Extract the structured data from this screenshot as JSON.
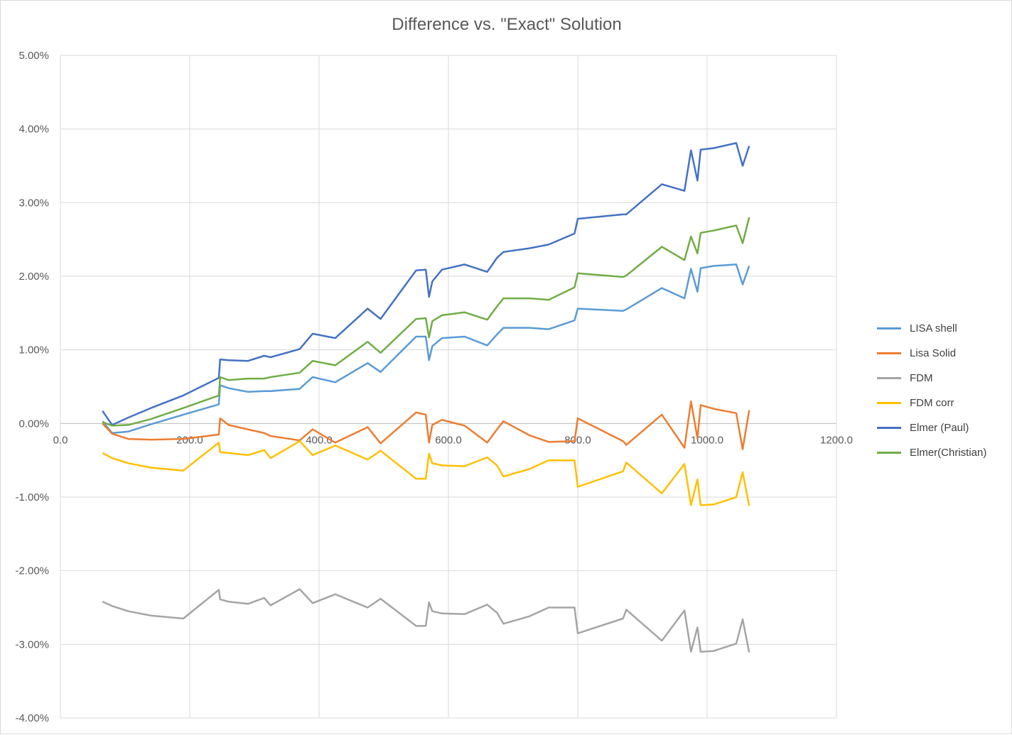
{
  "chart_data": {
    "type": "line",
    "title": "Difference vs. \"Exact\" Solution",
    "xlabel": "",
    "ylabel": "",
    "xlim": [
      0,
      1200
    ],
    "ylim": [
      -0.04,
      0.05
    ],
    "x_ticks": [
      0,
      200,
      400,
      600,
      800,
      1000,
      1200
    ],
    "x_tick_labels": [
      "0.0",
      "200.0",
      "400.0",
      "600.0",
      "800.0",
      "1000.0",
      "1200.0"
    ],
    "y_ticks": [
      0.05,
      0.04,
      0.03,
      0.02,
      0.01,
      0,
      -0.01,
      -0.02,
      -0.03,
      -0.04
    ],
    "y_tick_labels": [
      "5.00%",
      "4.00%",
      "3.00%",
      "2.00%",
      "1.00%",
      "0.00%",
      "-1.00%",
      "-2.00%",
      "-3.00%",
      "-4.00%"
    ],
    "grid": true,
    "legend_position": "right",
    "x": [
      65,
      80,
      105,
      140,
      190,
      245,
      247,
      260,
      290,
      315,
      325,
      370,
      390,
      425,
      475,
      495,
      550,
      565,
      570,
      575,
      590,
      625,
      660,
      675,
      685,
      725,
      755,
      795,
      800,
      870,
      875,
      930,
      965,
      975,
      985,
      990,
      1010,
      1045,
      1055,
      1065
    ],
    "series": [
      {
        "name": "LISA shell",
        "color": "#5b9bd5",
        "values": [
          0.0003,
          -0.0013,
          -0.0011,
          -0.0001,
          0.0012,
          0.0026,
          0.0052,
          0.0048,
          0.0043,
          0.0044,
          0.0044,
          0.0047,
          0.0063,
          0.0056,
          0.0082,
          0.007,
          0.0118,
          0.0118,
          0.0086,
          0.0105,
          0.0116,
          0.0118,
          0.0106,
          0.0121,
          0.013,
          0.013,
          0.0128,
          0.014,
          0.0156,
          0.0153,
          0.0155,
          0.0184,
          0.017,
          0.021,
          0.0179,
          0.0211,
          0.0214,
          0.0216,
          0.0189,
          0.0214
        ]
      },
      {
        "name": "Lisa Solid",
        "color": "#ed7d31",
        "values": [
          0.0,
          -0.0014,
          -0.0021,
          -0.0022,
          -0.0021,
          -0.0015,
          0.0007,
          -0.0002,
          -0.0008,
          -0.0013,
          -0.0017,
          -0.0023,
          -0.0008,
          -0.0026,
          -0.0005,
          -0.0027,
          0.0015,
          0.0012,
          -0.0026,
          -0.0002,
          0.0005,
          -0.0003,
          -0.0026,
          -0.0008,
          0.0003,
          -0.0016,
          -0.0025,
          -0.0024,
          0.0007,
          -0.0024,
          -0.0029,
          0.0012,
          -0.0033,
          0.003,
          -0.002,
          0.0025,
          0.002,
          0.0014,
          -0.0035,
          0.0018
        ]
      },
      {
        "name": "FDM",
        "color": "#a5a5a5",
        "values": [
          -0.0242,
          -0.0248,
          -0.0255,
          -0.0261,
          -0.0265,
          -0.0226,
          -0.0239,
          -0.0242,
          -0.0245,
          -0.0237,
          -0.0247,
          -0.0225,
          -0.0244,
          -0.0232,
          -0.025,
          -0.0238,
          -0.0275,
          -0.0275,
          -0.0243,
          -0.0255,
          -0.0258,
          -0.0259,
          -0.0246,
          -0.0257,
          -0.0272,
          -0.0262,
          -0.025,
          -0.025,
          -0.0285,
          -0.0265,
          -0.0253,
          -0.0295,
          -0.0254,
          -0.031,
          -0.0277,
          -0.031,
          -0.0309,
          -0.0299,
          -0.0266,
          -0.0311
        ]
      },
      {
        "name": "FDM corr",
        "color": "#ffc000",
        "values": [
          -0.004,
          -0.0047,
          -0.0054,
          -0.006,
          -0.0064,
          -0.0026,
          -0.0039,
          -0.004,
          -0.0043,
          -0.0036,
          -0.0047,
          -0.0024,
          -0.0043,
          -0.003,
          -0.0049,
          -0.0037,
          -0.0075,
          -0.0075,
          -0.0041,
          -0.0054,
          -0.0057,
          -0.0058,
          -0.0046,
          -0.0057,
          -0.0072,
          -0.0062,
          -0.005,
          -0.005,
          -0.0086,
          -0.0065,
          -0.0053,
          -0.0095,
          -0.0055,
          -0.0111,
          -0.0076,
          -0.0111,
          -0.011,
          -0.01,
          -0.0066,
          -0.0112
        ]
      },
      {
        "name": "Elmer (Paul)",
        "color": "#4472c4",
        "values": [
          0.0017,
          -0.0002,
          0.0008,
          0.0021,
          0.0038,
          0.0062,
          0.0087,
          0.0086,
          0.0085,
          0.0092,
          0.009,
          0.0101,
          0.0122,
          0.0116,
          0.0156,
          0.0142,
          0.0208,
          0.0209,
          0.0172,
          0.0193,
          0.0209,
          0.0216,
          0.0206,
          0.0225,
          0.0233,
          0.0238,
          0.0243,
          0.0258,
          0.0278,
          0.0284,
          0.0284,
          0.0325,
          0.0316,
          0.0371,
          0.033,
          0.0372,
          0.0374,
          0.0381,
          0.035,
          0.0377
        ]
      },
      {
        "name": "Elmer(Christian)",
        "color": "#70ad47",
        "values": [
          0.0002,
          -0.0003,
          -0.0002,
          0.0006,
          0.0021,
          0.0038,
          0.0063,
          0.0059,
          0.0061,
          0.0061,
          0.0063,
          0.0069,
          0.0085,
          0.0079,
          0.0111,
          0.0096,
          0.0142,
          0.0143,
          0.0117,
          0.0139,
          0.0147,
          0.0151,
          0.0141,
          0.0159,
          0.017,
          0.017,
          0.0168,
          0.0185,
          0.0204,
          0.0199,
          0.0201,
          0.024,
          0.0222,
          0.0254,
          0.0231,
          0.0259,
          0.0262,
          0.0269,
          0.0245,
          0.028
        ]
      }
    ]
  }
}
